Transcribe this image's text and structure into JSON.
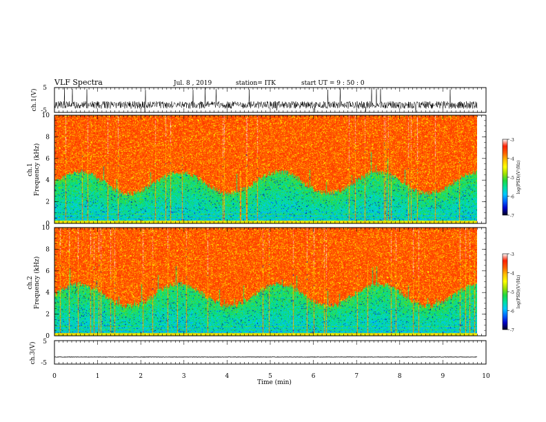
{
  "header": {
    "title": "VLF Spectra",
    "date": "Jul. 8 , 2019",
    "station": "station= ITK",
    "start_ut": "start UT = 9 : 50 : 0"
  },
  "chart_data": [
    {
      "type": "line",
      "id": "ch1_waveform",
      "ylabel": "ch.1(V)",
      "ylim": [
        -5,
        5
      ],
      "yticks": [
        "5",
        "-5"
      ],
      "xlim": [
        0,
        10
      ],
      "x_end": 9.8,
      "baseline": -2.0,
      "description": "noisy waveform"
    },
    {
      "type": "heatmap",
      "id": "ch1_spectrogram",
      "ylabel_channel": "ch.1",
      "ylabel": "Frequency (kHz)",
      "ylim": [
        0,
        10
      ],
      "yticks": [
        "0",
        "2",
        "4",
        "6",
        "8",
        "10"
      ],
      "xlim": [
        0,
        10
      ],
      "x_end": 9.8,
      "colorbar": {
        "label": "log(PSD)(V²/Hz)",
        "range": [
          -7,
          -3
        ],
        "ticks": [
          "-3",
          "-4",
          "-5",
          "-6",
          "-7"
        ]
      }
    },
    {
      "type": "heatmap",
      "id": "ch2_spectrogram",
      "ylabel_channel": "ch.2",
      "ylabel": "Frequency (kHz)",
      "ylim": [
        0,
        10
      ],
      "yticks": [
        "0",
        "2",
        "4",
        "6",
        "8",
        "10"
      ],
      "xlim": [
        0,
        10
      ],
      "x_end": 9.8,
      "colorbar": {
        "label": "log(PSD)(V²/Hz)",
        "range": [
          -7,
          -3
        ],
        "ticks": [
          "-3",
          "-4",
          "-5",
          "-6",
          "-7"
        ]
      }
    },
    {
      "type": "line",
      "id": "ch3_waveform",
      "ylabel": "ch.3(V)",
      "ylim": [
        -5,
        5
      ],
      "yticks": [
        "5",
        "-5"
      ],
      "xlim": [
        0,
        10
      ],
      "x_end": 9.8,
      "baseline": -2.0,
      "description": "flat waveform"
    }
  ],
  "x_axis": {
    "label": "Time (min)",
    "ticks": [
      "0",
      "1",
      "2",
      "3",
      "4",
      "5",
      "6",
      "7",
      "8",
      "9",
      "10"
    ]
  },
  "colors": {
    "colormap": [
      "#000020",
      "#0000c8",
      "#0064ff",
      "#00c8ff",
      "#00e0a0",
      "#20d840",
      "#a0e000",
      "#ffff00",
      "#ffc000",
      "#ff6000",
      "#ff2000",
      "#ffffff"
    ],
    "axis": "#000000"
  }
}
